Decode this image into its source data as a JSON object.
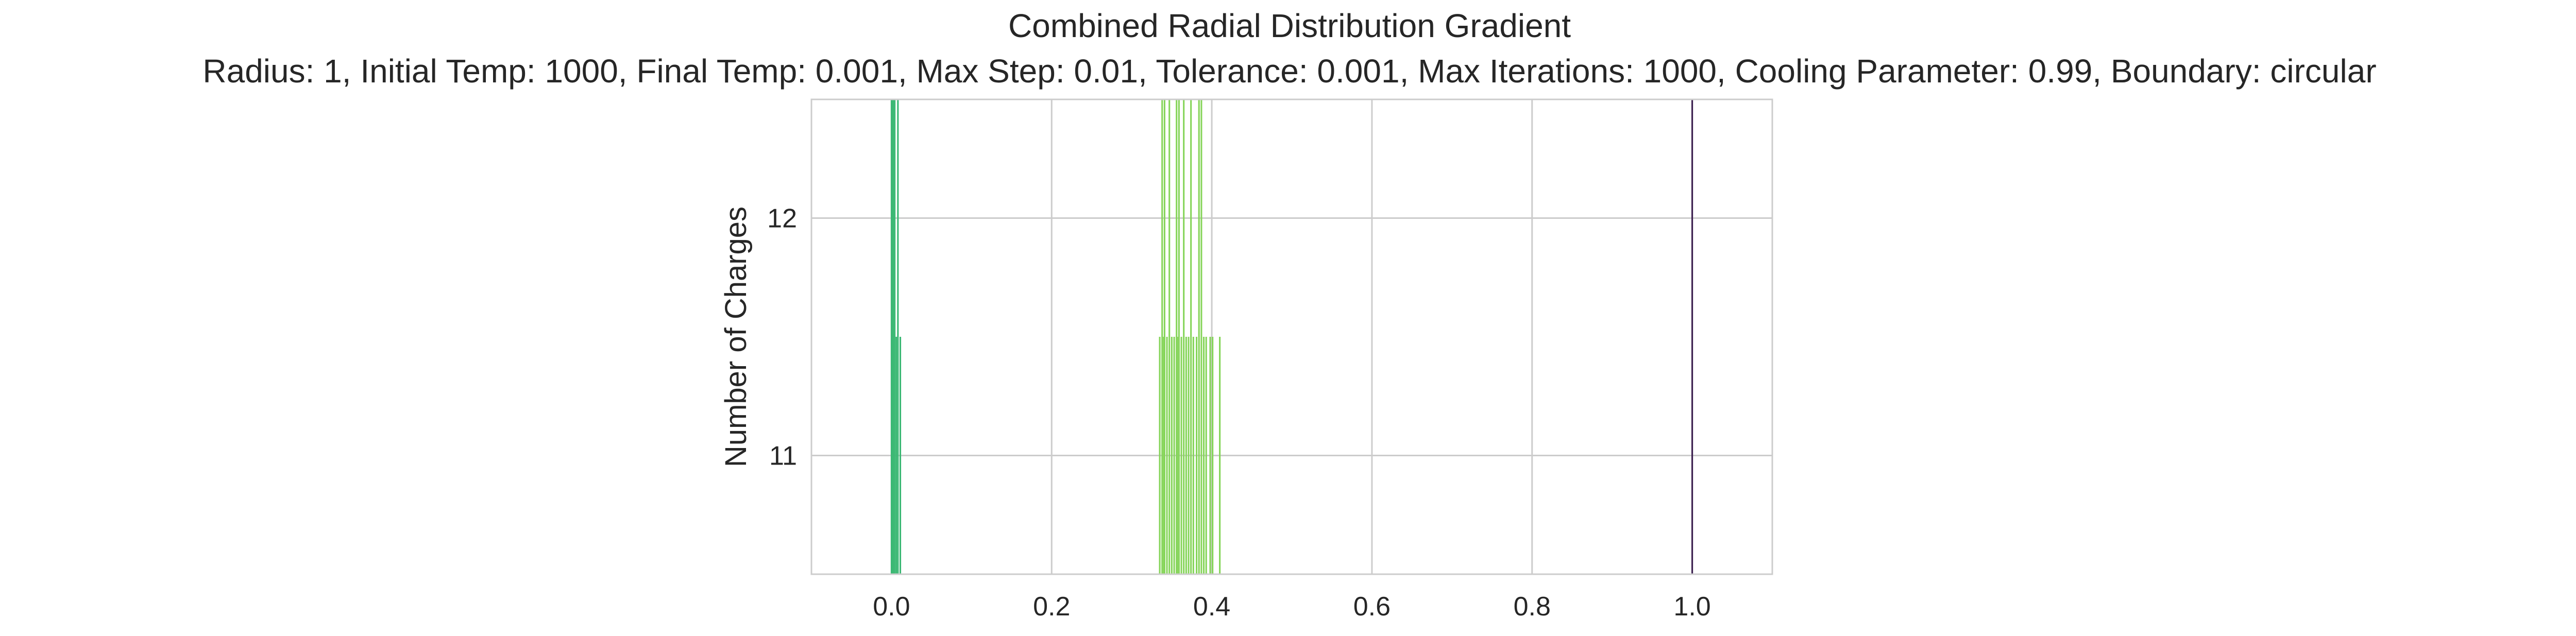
{
  "chart_data": {
    "type": "bar",
    "title": "Combined Radial Distribution Gradient",
    "subtitle": "Radius: 1, Initial Temp: 1000, Final Temp: 0.001, Max Step: 0.01, Tolerance: 0.001, Max Iterations: 1000, Cooling Parameter: 0.99, Boundary: circular",
    "xlabel": "",
    "ylabel": "Number of Charges",
    "xlim": [
      -0.1,
      1.1
    ],
    "ylim": [
      10.5,
      12.5
    ],
    "xticks": [
      0.0,
      0.2,
      0.4,
      0.6,
      0.8,
      1.0
    ],
    "xtick_labels": [
      "0.0",
      "0.2",
      "0.4",
      "0.6",
      "0.8",
      "1.0"
    ],
    "yticks": [
      11,
      12
    ],
    "ytick_labels": [
      "11",
      "12"
    ],
    "grid": true,
    "legend": "none",
    "bar_width": 0.002,
    "bars": [
      {
        "x": 0.0,
        "y": 12.5,
        "color": "#3bb873"
      },
      {
        "x": 0.002,
        "y": 12.5,
        "color": "#3bb873"
      },
      {
        "x": 0.004,
        "y": 12.5,
        "color": "#3bb873"
      },
      {
        "x": 0.006,
        "y": 11.5,
        "color": "#3bb873"
      },
      {
        "x": 0.008,
        "y": 12.5,
        "color": "#3bb873"
      },
      {
        "x": 0.011,
        "y": 11.5,
        "color": "#3bb873"
      },
      {
        "x": 0.003,
        "y": 10.5,
        "color": "#2c6e8e"
      },
      {
        "x": 0.335,
        "y": 11.5,
        "color": "#86d55a"
      },
      {
        "x": 0.338,
        "y": 12.5,
        "color": "#86d55a"
      },
      {
        "x": 0.341,
        "y": 12.5,
        "color": "#86d55a"
      },
      {
        "x": 0.344,
        "y": 11.5,
        "color": "#86d55a"
      },
      {
        "x": 0.347,
        "y": 12.5,
        "color": "#86d55a"
      },
      {
        "x": 0.35,
        "y": 11.5,
        "color": "#86d55a"
      },
      {
        "x": 0.353,
        "y": 11.5,
        "color": "#86d55a"
      },
      {
        "x": 0.356,
        "y": 12.5,
        "color": "#86d55a"
      },
      {
        "x": 0.359,
        "y": 12.5,
        "color": "#86d55a"
      },
      {
        "x": 0.362,
        "y": 11.5,
        "color": "#86d55a"
      },
      {
        "x": 0.365,
        "y": 12.5,
        "color": "#86d55a"
      },
      {
        "x": 0.368,
        "y": 11.5,
        "color": "#86d55a"
      },
      {
        "x": 0.371,
        "y": 11.5,
        "color": "#86d55a"
      },
      {
        "x": 0.374,
        "y": 12.5,
        "color": "#86d55a"
      },
      {
        "x": 0.377,
        "y": 11.5,
        "color": "#86d55a"
      },
      {
        "x": 0.381,
        "y": 11.5,
        "color": "#86d55a"
      },
      {
        "x": 0.384,
        "y": 12.5,
        "color": "#86d55a"
      },
      {
        "x": 0.387,
        "y": 12.5,
        "color": "#86d55a"
      },
      {
        "x": 0.39,
        "y": 11.5,
        "color": "#86d55a"
      },
      {
        "x": 0.393,
        "y": 11.5,
        "color": "#86d55a"
      },
      {
        "x": 0.34,
        "y": 11.5,
        "color": "#86d55a"
      },
      {
        "x": 0.357,
        "y": 11.5,
        "color": "#86d55a"
      },
      {
        "x": 0.398,
        "y": 11.5,
        "color": "#86d55a"
      },
      {
        "x": 0.401,
        "y": 11.5,
        "color": "#86d55a"
      },
      {
        "x": 0.41,
        "y": 11.5,
        "color": "#86d55a"
      },
      {
        "x": 1.0,
        "y": 12.5,
        "color": "#3b1f4f"
      }
    ]
  }
}
